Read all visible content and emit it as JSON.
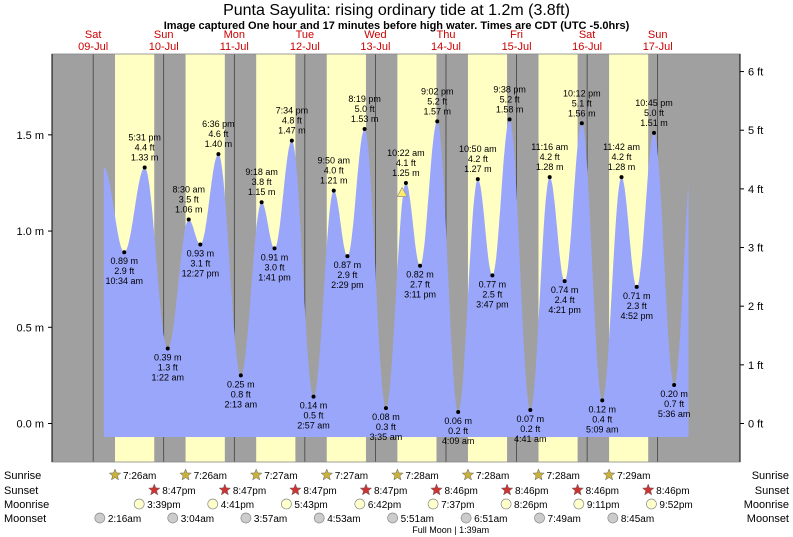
{
  "chart_data": {
    "type": "area",
    "title": "Punta Sayulita: rising  ordinary tide at 1.2m (3.8ft)",
    "subtitle": "Image captured One hour and 17 minutes before high water. Times are CDT (UTC -5.0hrs)",
    "x_axis": {
      "unit": "hours since 09-Jul 00:00",
      "range": [
        -14,
        220
      ]
    },
    "y_axis": {
      "left_unit": "m",
      "right_unit": "ft",
      "range_m": [
        -0.2,
        1.92
      ]
    },
    "left_ticks": [
      "0.0 m",
      "0.5 m",
      "1.0 m",
      "1.5 m"
    ],
    "left_tick_values": [
      0.0,
      0.5,
      1.0,
      1.5
    ],
    "right_ticks": [
      "0 ft",
      "1 ft",
      "2 ft",
      "3 ft",
      "4 ft",
      "5 ft",
      "6 ft"
    ],
    "right_tick_values": [
      0,
      1,
      2,
      3,
      4,
      5,
      6
    ],
    "days": [
      {
        "name": "Sat",
        "date": "09-Jul",
        "hour": 0
      },
      {
        "name": "Sun",
        "date": "10-Jul",
        "hour": 24
      },
      {
        "name": "Mon",
        "date": "11-Jul",
        "hour": 48
      },
      {
        "name": "Tue",
        "date": "12-Jul",
        "hour": 72
      },
      {
        "name": "Wed",
        "date": "13-Jul",
        "hour": 96
      },
      {
        "name": "Thu",
        "date": "14-Jul",
        "hour": 120
      },
      {
        "name": "Fri",
        "date": "15-Jul",
        "hour": 144
      },
      {
        "name": "Sat",
        "date": "16-Jul",
        "hour": 168
      },
      {
        "name": "Sun",
        "date": "17-Jul",
        "hour": 192
      }
    ],
    "daylight": [
      {
        "sunrise_h": 7.43,
        "sunset_h": 20.78
      },
      {
        "sunrise_h": 31.43,
        "sunset_h": 44.78
      },
      {
        "sunrise_h": 55.45,
        "sunset_h": 68.78
      },
      {
        "sunrise_h": 79.45,
        "sunset_h": 92.78
      },
      {
        "sunrise_h": 103.47,
        "sunset_h": 116.77
      },
      {
        "sunrise_h": 127.47,
        "sunset_h": 140.77
      },
      {
        "sunrise_h": 151.47,
        "sunset_h": 164.77
      },
      {
        "sunrise_h": 175.48,
        "sunset_h": 188.77
      }
    ],
    "tides": [
      {
        "h": 10.57,
        "m": 0.89,
        "ft": "2.9 ft",
        "m_label": "0.89 m",
        "time": "10:34 am",
        "type": "low"
      },
      {
        "h": 17.52,
        "m": 1.33,
        "ft": "4.4 ft",
        "m_label": "1.33 m",
        "time": "5:31 pm",
        "type": "high"
      },
      {
        "h": 25.37,
        "m": 0.39,
        "ft": "1.3 ft",
        "m_label": "0.39 m",
        "time": "1:22 am",
        "type": "low"
      },
      {
        "h": 32.5,
        "m": 1.06,
        "ft": "3.5 ft",
        "m_label": "1.06 m",
        "time": "8:30 am",
        "type": "high"
      },
      {
        "h": 36.45,
        "m": 0.93,
        "ft": "3.1 ft",
        "m_label": "0.93 m",
        "time": "12:27 pm",
        "type": "low"
      },
      {
        "h": 42.6,
        "m": 1.4,
        "ft": "4.6 ft",
        "m_label": "1.40 m",
        "time": "6:36 pm",
        "type": "high"
      },
      {
        "h": 50.22,
        "m": 0.25,
        "ft": "0.8 ft",
        "m_label": "0.25 m",
        "time": "2:13 am",
        "type": "low"
      },
      {
        "h": 57.3,
        "m": 1.15,
        "ft": "3.8 ft",
        "m_label": "1.15 m",
        "time": "9:18 am",
        "type": "high"
      },
      {
        "h": 61.68,
        "m": 0.91,
        "ft": "3.0 ft",
        "m_label": "0.91 m",
        "time": "1:41 pm",
        "type": "low"
      },
      {
        "h": 67.57,
        "m": 1.47,
        "ft": "4.8 ft",
        "m_label": "1.47 m",
        "time": "7:34 pm",
        "type": "high"
      },
      {
        "h": 74.95,
        "m": 0.14,
        "ft": "0.5 ft",
        "m_label": "0.14 m",
        "time": "2:57 am",
        "type": "low"
      },
      {
        "h": 81.83,
        "m": 1.21,
        "ft": "4.0 ft",
        "m_label": "1.21 m",
        "time": "9:50 am",
        "type": "high"
      },
      {
        "h": 86.48,
        "m": 0.87,
        "ft": "2.9 ft",
        "m_label": "0.87 m",
        "time": "2:29 pm",
        "type": "low"
      },
      {
        "h": 92.32,
        "m": 1.53,
        "ft": "5.0 ft",
        "m_label": "1.53 m",
        "time": "8:19 pm",
        "type": "high"
      },
      {
        "h": 99.58,
        "m": 0.08,
        "ft": "0.3 ft",
        "m_label": "0.08 m",
        "time": "3:35 am",
        "type": "low"
      },
      {
        "h": 106.37,
        "m": 1.25,
        "ft": "4.1 ft",
        "m_label": "1.25 m",
        "time": "10:22 am",
        "type": "high"
      },
      {
        "h": 111.18,
        "m": 0.82,
        "ft": "2.7 ft",
        "m_label": "0.82 m",
        "time": "3:11 pm",
        "type": "low"
      },
      {
        "h": 117.03,
        "m": 1.57,
        "ft": "5.2 ft",
        "m_label": "1.57 m",
        "time": "9:02 pm",
        "type": "high"
      },
      {
        "h": 124.15,
        "m": 0.06,
        "ft": "0.2 ft",
        "m_label": "0.06 m",
        "time": "4:09 am",
        "type": "low"
      },
      {
        "h": 130.83,
        "m": 1.27,
        "ft": "4.2 ft",
        "m_label": "1.27 m",
        "time": "10:50 am",
        "type": "high"
      },
      {
        "h": 135.78,
        "m": 0.77,
        "ft": "2.5 ft",
        "m_label": "0.77 m",
        "time": "3:47 pm",
        "type": "low"
      },
      {
        "h": 141.63,
        "m": 1.58,
        "ft": "5.2 ft",
        "m_label": "1.58 m",
        "time": "9:38 pm",
        "type": "high"
      },
      {
        "h": 148.68,
        "m": 0.07,
        "ft": "0.2 ft",
        "m_label": "0.07 m",
        "time": "4:41 am",
        "type": "low"
      },
      {
        "h": 155.27,
        "m": 1.28,
        "ft": "4.2 ft",
        "m_label": "1.28 m",
        "time": "11:16 am",
        "type": "high"
      },
      {
        "h": 160.35,
        "m": 0.74,
        "ft": "2.4 ft",
        "m_label": "0.74 m",
        "time": "4:21 pm",
        "type": "low"
      },
      {
        "h": 166.2,
        "m": 1.56,
        "ft": "5.1 ft",
        "m_label": "1.56 m",
        "time": "10:12 pm",
        "type": "high"
      },
      {
        "h": 173.15,
        "m": 0.12,
        "ft": "0.4 ft",
        "m_label": "0.12 m",
        "time": "5:09 am",
        "type": "low"
      },
      {
        "h": 179.7,
        "m": 1.28,
        "ft": "4.2 ft",
        "m_label": "1.28 m",
        "time": "11:42 am",
        "type": "high"
      },
      {
        "h": 184.87,
        "m": 0.71,
        "ft": "2.3 ft",
        "m_label": "0.71 m",
        "time": "4:52 pm",
        "type": "low"
      },
      {
        "h": 190.75,
        "m": 1.51,
        "ft": "5.0 ft",
        "m_label": "1.51 m",
        "time": "10:45 pm",
        "type": "high"
      },
      {
        "h": 197.6,
        "m": 0.2,
        "ft": "0.7 ft",
        "m_label": "0.20 m",
        "time": "5:36 am",
        "type": "low"
      }
    ],
    "current_tide": {
      "h": 105.1,
      "m": 1.2
    },
    "end_value": {
      "h": 202.5,
      "m": 0.78
    },
    "legend_labels": [
      "Sunrise",
      "Sunset",
      "Moonrise",
      "Moonset"
    ],
    "sunrise": [
      {
        "h": 7.43,
        "time": "7:26am"
      },
      {
        "h": 31.43,
        "time": "7:26am"
      },
      {
        "h": 55.45,
        "time": "7:27am"
      },
      {
        "h": 79.45,
        "time": "7:27am"
      },
      {
        "h": 103.47,
        "time": "7:28am"
      },
      {
        "h": 127.47,
        "time": "7:28am"
      },
      {
        "h": 151.47,
        "time": "7:28am"
      },
      {
        "h": 175.48,
        "time": "7:29am"
      }
    ],
    "sunset": [
      {
        "h": 20.78,
        "time": "8:47pm"
      },
      {
        "h": 44.78,
        "time": "8:47pm"
      },
      {
        "h": 68.78,
        "time": "8:47pm"
      },
      {
        "h": 92.78,
        "time": "8:47pm"
      },
      {
        "h": 116.77,
        "time": "8:46pm"
      },
      {
        "h": 140.77,
        "time": "8:46pm"
      },
      {
        "h": 164.77,
        "time": "8:46pm"
      },
      {
        "h": 188.77,
        "time": "8:46pm"
      }
    ],
    "moonrise": [
      {
        "h": 15.65,
        "time": "3:39pm"
      },
      {
        "h": 40.68,
        "time": "4:41pm"
      },
      {
        "h": 65.72,
        "time": "5:43pm"
      },
      {
        "h": 90.7,
        "time": "6:42pm"
      },
      {
        "h": 115.62,
        "time": "7:37pm"
      },
      {
        "h": 140.43,
        "time": "8:26pm"
      },
      {
        "h": 165.18,
        "time": "9:11pm"
      },
      {
        "h": 189.87,
        "time": "9:52pm"
      }
    ],
    "moonset": [
      {
        "h": 2.27,
        "time": "2:16am"
      },
      {
        "h": 27.07,
        "time": "3:04am"
      },
      {
        "h": 51.95,
        "time": "3:57am"
      },
      {
        "h": 76.88,
        "time": "4:53am"
      },
      {
        "h": 101.85,
        "time": "5:51am"
      },
      {
        "h": 126.85,
        "time": "6:51am"
      },
      {
        "h": 151.82,
        "time": "7:49am"
      },
      {
        "h": 176.75,
        "time": "8:45am"
      }
    ],
    "footnote": {
      "h": 121.6,
      "text": "Full Moon | 1:39am"
    },
    "colors": {
      "night": "#a0a0a0",
      "day": "#ffffc4",
      "water": "#9aa6fa",
      "day_label": "#cc0000",
      "sun_marker": "#c9b23a",
      "sunset_marker": "#cc3333",
      "moonrise_marker": "#ffffcc",
      "moonset_marker": "#cccccc"
    }
  }
}
